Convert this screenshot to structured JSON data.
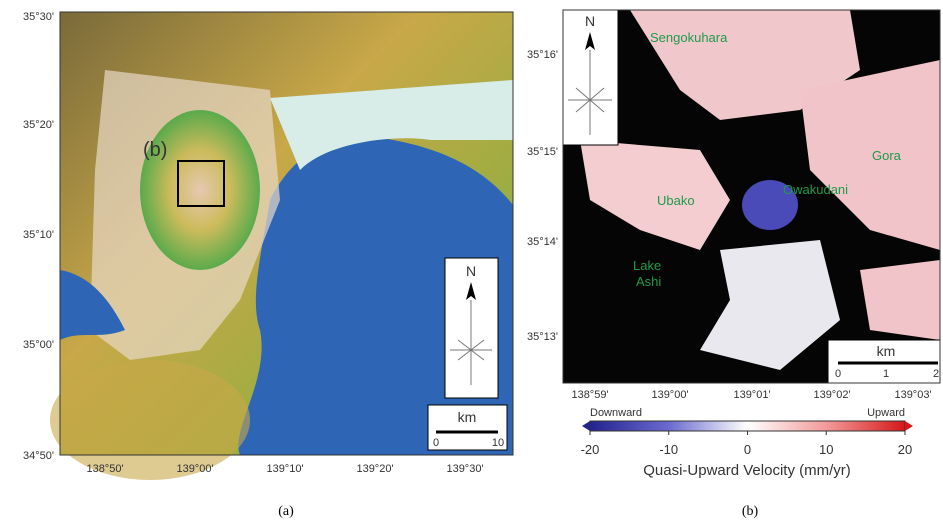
{
  "panel_a": {
    "lat_labels": [
      "35°30'",
      "35°20'",
      "35°10'",
      "35°00'",
      "34°50'"
    ],
    "lon_labels": [
      "138°50'",
      "139°00'",
      "139°10'",
      "139°20'",
      "139°30'"
    ],
    "inset_label": "(b)",
    "north": "N",
    "scale_unit": "km",
    "scale_labels": [
      "0",
      "10"
    ],
    "caption": "(a)"
  },
  "panel_b": {
    "lat_labels": [
      "35°16'",
      "35°15'",
      "35°14'",
      "35°13'"
    ],
    "lon_labels": [
      "138°59'",
      "139°00'",
      "139°01'",
      "139°02'",
      "139°03'"
    ],
    "places": [
      "Sengokuhara",
      "Gora",
      "Owakudani",
      "Ubako",
      "Lake\nAshi"
    ],
    "north": "N",
    "scale_unit": "km",
    "scale_labels": [
      "0",
      "1",
      "2"
    ],
    "caption": "(b)"
  },
  "colorbar": {
    "lim": [
      -20,
      20
    ],
    "ticks": [
      -20,
      -10,
      0,
      10,
      20
    ],
    "left_label": "Downward",
    "right_label": "Upward",
    "title": "Quasi-Upward Velocity (mm/yr)"
  }
}
